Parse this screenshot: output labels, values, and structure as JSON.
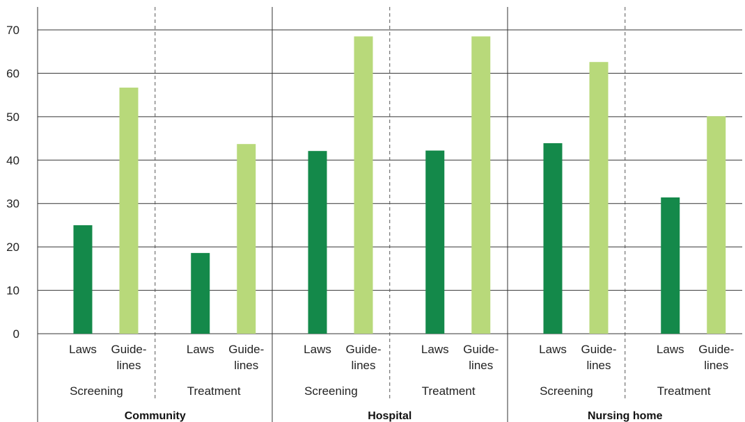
{
  "chart_data": {
    "type": "bar",
    "title": "",
    "xlabel": "",
    "ylabel": "",
    "ylim": [
      0,
      70
    ],
    "yticks": [
      "0",
      "10",
      "20",
      "30",
      "40",
      "50",
      "60",
      "70"
    ],
    "grid": "horizontal",
    "colors": {
      "laws": "#14894a",
      "guidelines": "#b8d97a"
    },
    "settings": [
      {
        "name": "Community",
        "groups": [
          {
            "name": "Screening",
            "bars": [
              {
                "label": [
                  "Laws"
                ],
                "value": 25,
                "kind": "laws"
              },
              {
                "label": [
                  "Guide-",
                  "lines"
                ],
                "value": 56.7,
                "kind": "guidelines"
              }
            ]
          },
          {
            "name": "Treatment",
            "bars": [
              {
                "label": [
                  "Laws"
                ],
                "value": 18.6,
                "kind": "laws"
              },
              {
                "label": [
                  "Guide-",
                  "lines"
                ],
                "value": 43.7,
                "kind": "guidelines"
              }
            ]
          }
        ]
      },
      {
        "name": "Hospital",
        "groups": [
          {
            "name": "Screening",
            "bars": [
              {
                "label": [
                  "Laws"
                ],
                "value": 42.1,
                "kind": "laws"
              },
              {
                "label": [
                  "Guide-",
                  "lines"
                ],
                "value": 68.5,
                "kind": "guidelines"
              }
            ]
          },
          {
            "name": "Treatment",
            "bars": [
              {
                "label": [
                  "Laws"
                ],
                "value": 42.2,
                "kind": "laws"
              },
              {
                "label": [
                  "Guide-",
                  "lines"
                ],
                "value": 68.5,
                "kind": "guidelines"
              }
            ]
          }
        ]
      },
      {
        "name": "Nursing home",
        "groups": [
          {
            "name": "Screening",
            "bars": [
              {
                "label": [
                  "Laws"
                ],
                "value": 43.9,
                "kind": "laws"
              },
              {
                "label": [
                  "Guide-",
                  "lines"
                ],
                "value": 62.6,
                "kind": "guidelines"
              }
            ]
          },
          {
            "name": "Treatment",
            "bars": [
              {
                "label": [
                  "Laws"
                ],
                "value": 31.4,
                "kind": "laws"
              },
              {
                "label": [
                  "Guide-",
                  "lines"
                ],
                "value": 50.1,
                "kind": "guidelines"
              }
            ]
          }
        ]
      }
    ]
  }
}
